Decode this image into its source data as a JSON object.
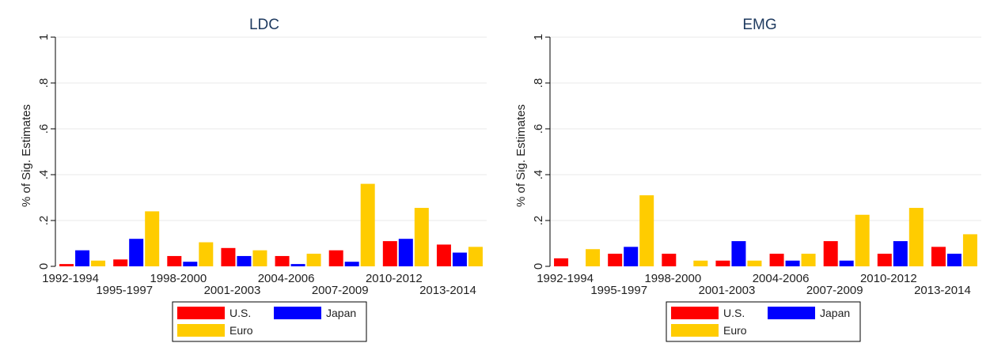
{
  "chart_data": [
    {
      "type": "bar",
      "title": "LDC",
      "ylabel": "% of Sig. Estimates",
      "xlabel": "",
      "ylim": [
        0,
        1
      ],
      "yticks": [
        0,
        0.2,
        0.4,
        0.6,
        0.8,
        1
      ],
      "ytick_labels": [
        "0",
        ".2",
        ".4",
        ".6",
        ".8",
        "1"
      ],
      "grid": true,
      "categories": [
        "1992-1994",
        "1995-1997",
        "1998-2000",
        "2001-2003",
        "2004-2006",
        "2007-2009",
        "2010-2012",
        "2013-2014"
      ],
      "series": [
        {
          "name": "U.S.",
          "color": "#ff0000",
          "values": [
            0.01,
            0.03,
            0.045,
            0.08,
            0.045,
            0.07,
            0.11,
            0.095
          ]
        },
        {
          "name": "Japan",
          "color": "#0000ff",
          "values": [
            0.07,
            0.12,
            0.02,
            0.045,
            0.01,
            0.02,
            0.12,
            0.06
          ]
        },
        {
          "name": "Euro",
          "color": "#ffcc00",
          "values": [
            0.025,
            0.24,
            0.105,
            0.07,
            0.055,
            0.36,
            0.255,
            0.085
          ]
        }
      ],
      "legend_position": "bottom"
    },
    {
      "type": "bar",
      "title": "EMG",
      "ylabel": "% of Sig. Estimates",
      "xlabel": "",
      "ylim": [
        0,
        1
      ],
      "yticks": [
        0,
        0.2,
        0.4,
        0.6,
        0.8,
        1
      ],
      "ytick_labels": [
        "0",
        ".2",
        ".4",
        ".6",
        ".8",
        "1"
      ],
      "grid": true,
      "categories": [
        "1992-1994",
        "1995-1997",
        "1998-2000",
        "2001-2003",
        "2004-2006",
        "2007-2009",
        "2010-2012",
        "2013-2014"
      ],
      "series": [
        {
          "name": "U.S.",
          "color": "#ff0000",
          "values": [
            0.035,
            0.055,
            0.055,
            0.025,
            0.055,
            0.11,
            0.055,
            0.085
          ]
        },
        {
          "name": "Japan",
          "color": "#0000ff",
          "values": [
            0,
            0.085,
            0,
            0.11,
            0.025,
            0.025,
            0.11,
            0.055
          ]
        },
        {
          "name": "Euro",
          "color": "#ffcc00",
          "values": [
            0.075,
            0.31,
            0.025,
            0.025,
            0.055,
            0.225,
            0.255,
            0.14
          ]
        }
      ],
      "legend_position": "bottom"
    }
  ]
}
